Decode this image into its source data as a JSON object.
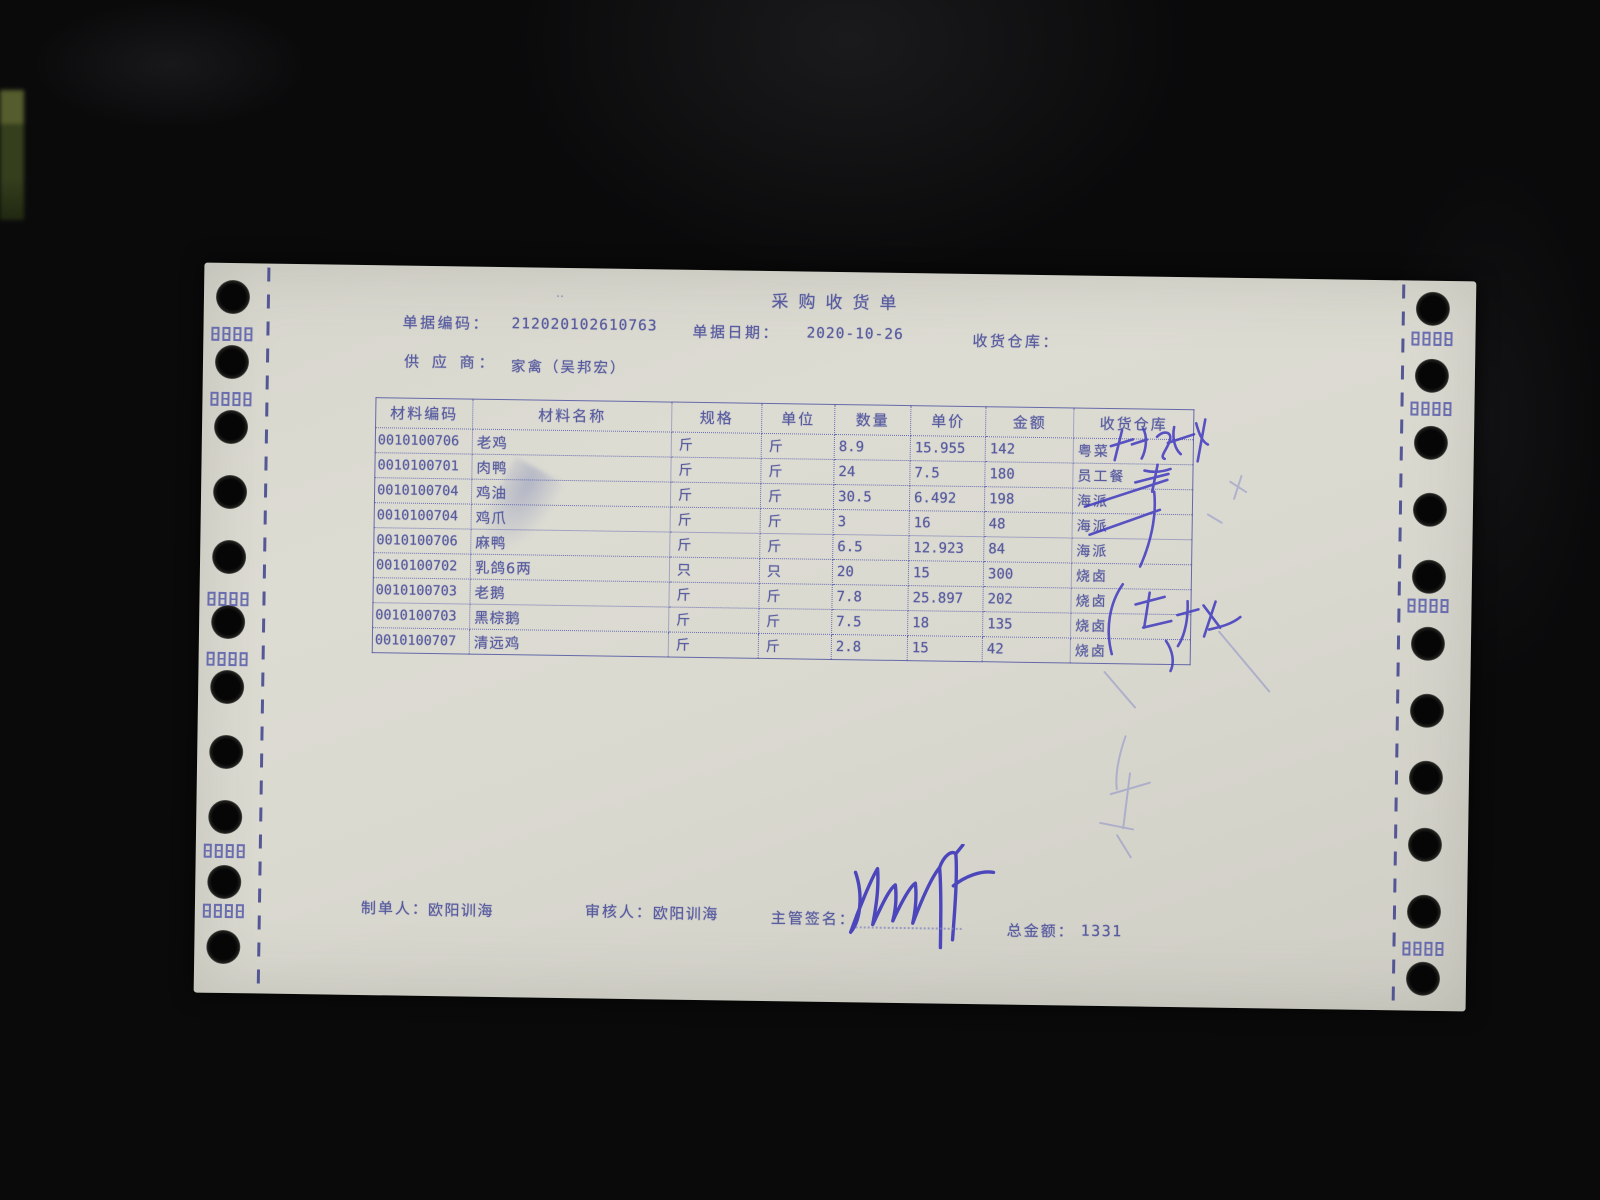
{
  "document": {
    "title": "采购收货单",
    "meta": {
      "doc_code_label": "单据编码：",
      "doc_code": "212020102610763",
      "doc_date_label": "单据日期：",
      "doc_date": "2020-10-26",
      "warehouse_label": "收货仓库：",
      "warehouse": "",
      "supplier_label": "供 应 商：",
      "supplier": "家禽（吴邦宏）"
    },
    "table": {
      "headers": [
        "材料编码",
        "材料名称",
        "规格",
        "单位",
        "数量",
        "单价",
        "金额",
        "收货仓库"
      ],
      "rows": [
        [
          "0010100706",
          "老鸡",
          "斤",
          "斤",
          "8.9",
          "15.955",
          "142",
          "粤菜"
        ],
        [
          "0010100701",
          "肉鸭",
          "斤",
          "斤",
          "24",
          "7.5",
          "180",
          "员工餐"
        ],
        [
          "0010100704",
          "鸡油",
          "斤",
          "斤",
          "30.5",
          "6.492",
          "198",
          "海派"
        ],
        [
          "0010100704",
          "鸡爪",
          "斤",
          "斤",
          "3",
          "16",
          "48",
          "海派"
        ],
        [
          "0010100706",
          "麻鸭",
          "斤",
          "斤",
          "6.5",
          "12.923",
          "84",
          "海派"
        ],
        [
          "0010100702",
          "乳鸽6两",
          "只",
          "只",
          "20",
          "15",
          "300",
          "烧卤"
        ],
        [
          "0010100703",
          "老鹅",
          "斤",
          "斤",
          "7.8",
          "25.897",
          "202",
          "烧卤"
        ],
        [
          "0010100703",
          "黑棕鹅",
          "斤",
          "斤",
          "7.5",
          "18",
          "135",
          "烧卤"
        ],
        [
          "0010100707",
          "清远鸡",
          "斤",
          "斤",
          "2.8",
          "15",
          "42",
          "烧卤"
        ]
      ]
    },
    "footer": {
      "preparer_label": "制单人：",
      "preparer": "欧阳训海",
      "reviewer_label": "审核人：",
      "reviewer": "欧阳训海",
      "signature_label": "主管签名：",
      "total_label": "总金额：",
      "total": "1331"
    },
    "handwriting": {
      "row1_handwritten_name": "郑阳华"
    },
    "decor": {
      "title_dots": "‥"
    }
  }
}
